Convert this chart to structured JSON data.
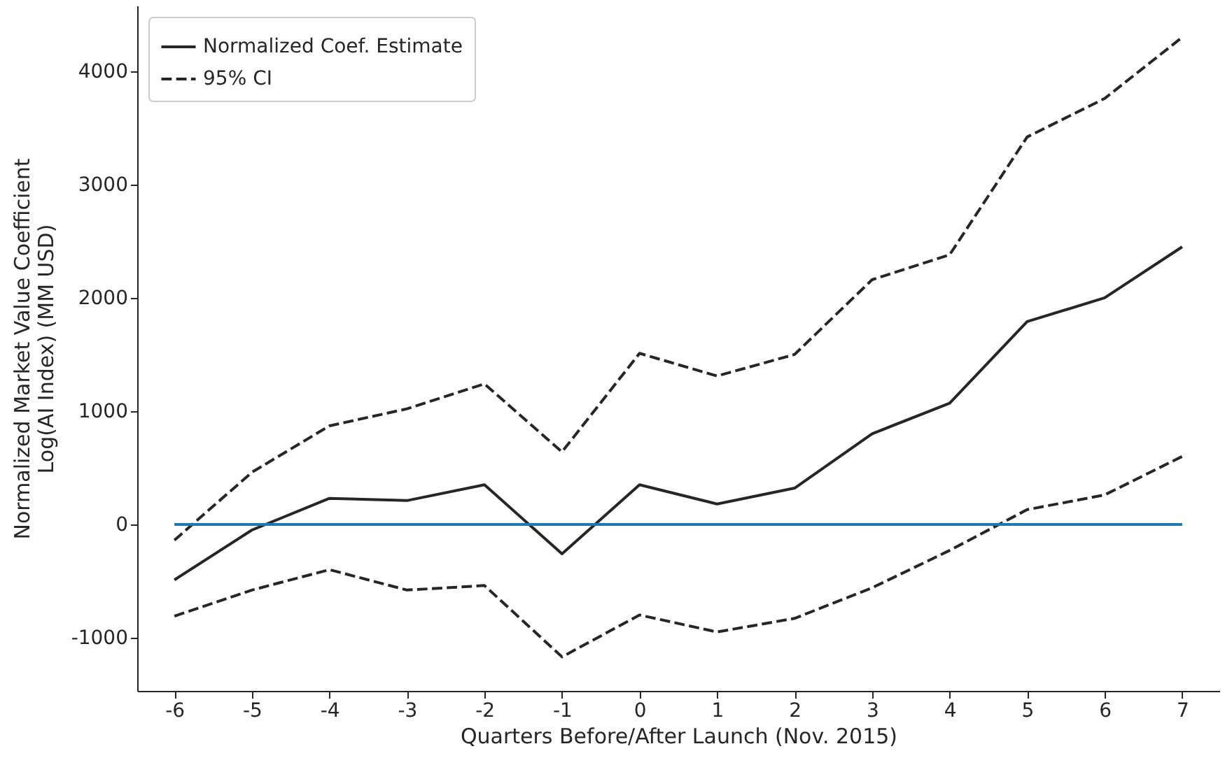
{
  "chart_data": {
    "type": "line",
    "xlabel": "Quarters Before/After Launch (Nov. 2015)",
    "ylabel": "Normalized Market Value Coefficient\nLog(AI Index) (MM USD)",
    "x": [
      -6,
      -5,
      -4,
      -3,
      -2,
      -1,
      0,
      1,
      2,
      3,
      4,
      5,
      6,
      7
    ],
    "series": [
      {
        "name": "Normalized Coef. Estimate",
        "color": "#262626",
        "line_style": "solid",
        "values": [
          -490,
          -50,
          230,
          210,
          350,
          -260,
          350,
          180,
          320,
          800,
          1070,
          1790,
          2000,
          2450
        ]
      },
      {
        "name": "95% CI",
        "color": "#262626",
        "line_style": "dashed",
        "values": [
          -140,
          460,
          870,
          1020,
          1240,
          640,
          1510,
          1310,
          1500,
          2160,
          2380,
          3420,
          3760,
          4300
        ]
      },
      {
        "color": "#262626",
        "line_style": "dashed",
        "values": [
          -810,
          -580,
          -400,
          -580,
          -540,
          -1170,
          -800,
          -950,
          -830,
          -560,
          -230,
          130,
          260,
          600
        ]
      }
    ],
    "ref_lines": [
      {
        "axis": "y",
        "value": 0,
        "color": "#1f77b4"
      }
    ],
    "xlim": [
      -6.48,
      7.48
    ],
    "xticks": [
      -6,
      -5,
      -4,
      -3,
      -2,
      -1,
      0,
      1,
      2,
      3,
      4,
      5,
      6,
      7
    ],
    "ylim": [
      -1470,
      4580
    ],
    "yticks": [
      -1000,
      0,
      1000,
      2000,
      3000,
      4000
    ],
    "grid": false,
    "legend": "top left"
  }
}
